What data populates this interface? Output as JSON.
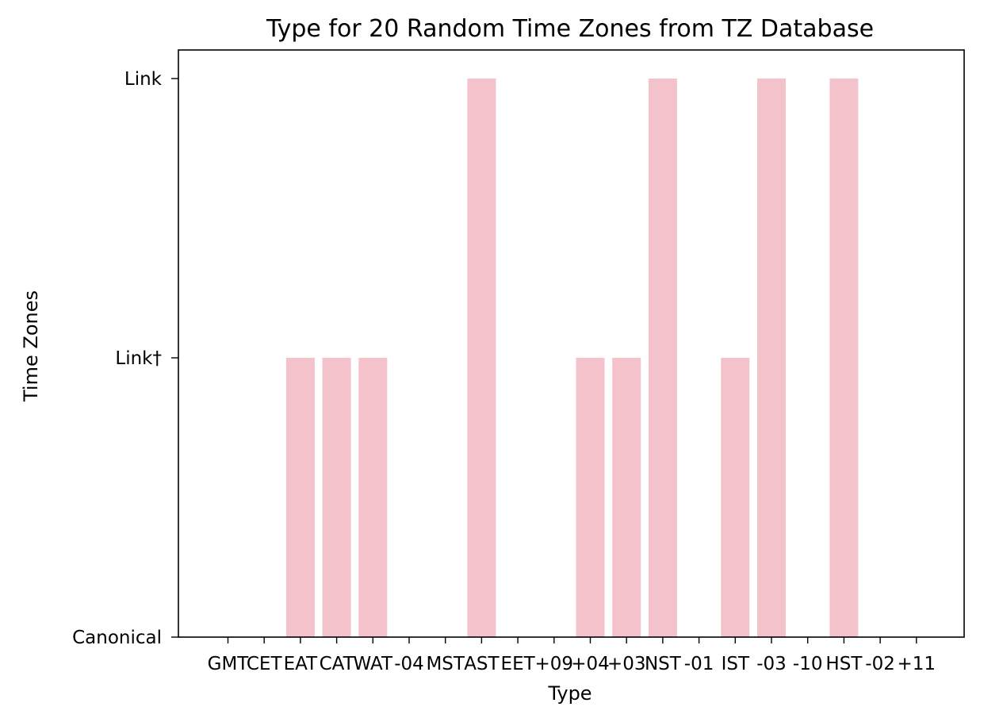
{
  "chart_data": {
    "type": "bar",
    "title": "Type for 20 Random Time Zones from TZ Database",
    "xlabel": "Type",
    "ylabel": "Time Zones",
    "categories": [
      "GMT",
      "CET",
      "EAT",
      "CAT",
      "WAT",
      "-04",
      "MST",
      "AST",
      "EET",
      "+09",
      "+04",
      "+03",
      "NST",
      "-01",
      "IST",
      "-03",
      "-10",
      "HST",
      "-02",
      "+11"
    ],
    "y_categories": [
      "Canonical",
      "Link†",
      "Link"
    ],
    "values": [
      "Canonical",
      "Canonical",
      "Link†",
      "Link†",
      "Link†",
      "Canonical",
      "Canonical",
      "Link",
      "Canonical",
      "Canonical",
      "Link†",
      "Link†",
      "Link",
      "Canonical",
      "Link†",
      "Link",
      "Canonical",
      "Link",
      "Canonical",
      "Canonical"
    ],
    "bar_color": "#f4c2cb",
    "grid": false
  }
}
